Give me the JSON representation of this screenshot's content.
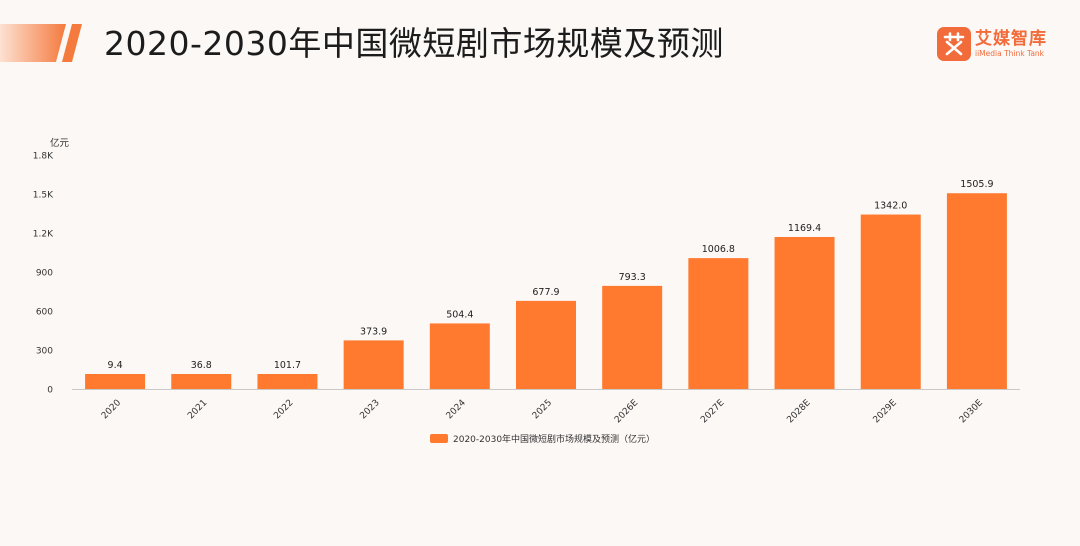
{
  "header": {
    "title": "2020-2030年中国微短剧市场规模及预测"
  },
  "brand": {
    "logo_icon": "ai-character-logo-icon",
    "name": "艾媒智库",
    "subtitle": "iiMedia Think Tank"
  },
  "colors": {
    "bar": "#ff7a2f",
    "accent": "#f26b3a",
    "header_gradient_start": "#fde1d2",
    "header_gradient_end": "#f47a3e"
  },
  "chart_data": {
    "type": "bar",
    "categories": [
      "2020",
      "2021",
      "2022",
      "2023",
      "2024",
      "2025",
      "2026E",
      "2027E",
      "2028E",
      "2029E",
      "2030E"
    ],
    "series": [
      {
        "name": "2020-2030年中国微短剧市场规模及预测（亿元）",
        "values": [
          9.4,
          36.8,
          101.7,
          373.9,
          504.4,
          677.9,
          793.3,
          1006.8,
          1169.4,
          1342.0,
          1505.9
        ]
      }
    ],
    "data_labels": [
      "9.4",
      "36.8",
      "101.7",
      "373.9",
      "504.4",
      "677.9",
      "793.3",
      "1006.8",
      "1169.4",
      "1342.0",
      "1505.9"
    ],
    "ylabel": "亿元",
    "yticks": [
      0,
      300,
      600,
      900,
      1200,
      1500,
      1800
    ],
    "ytick_labels": [
      "0",
      "300",
      "600",
      "900",
      "1.2K",
      "1.5K",
      "1.8K"
    ],
    "ylim": [
      0,
      1800
    ],
    "grid": false,
    "legend_position": "bottom"
  }
}
